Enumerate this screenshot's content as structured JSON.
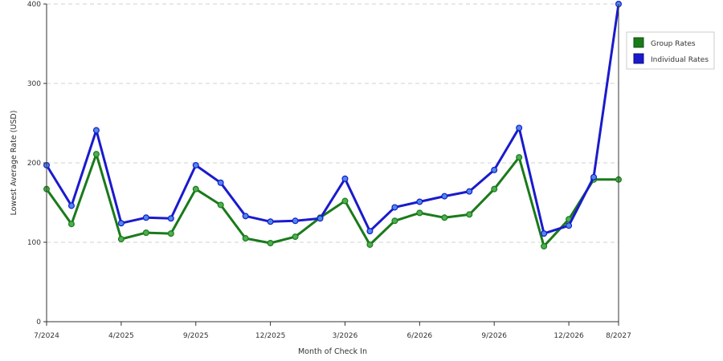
{
  "chart_data": {
    "type": "line",
    "xlabel": "Month of Check In",
    "ylabel": "Lowest Average Rate (USD)",
    "ylim": [
      0,
      400
    ],
    "yticks": [
      0,
      100,
      200,
      300,
      400
    ],
    "grid": "horizontal-dashed",
    "legend_position": "right",
    "x_tick_labels": [
      {
        "index": 0,
        "label": "7/2024"
      },
      {
        "index": 3,
        "label": "4/2025"
      },
      {
        "index": 6,
        "label": "9/2025"
      },
      {
        "index": 9,
        "label": "12/2025"
      },
      {
        "index": 12,
        "label": "3/2026"
      },
      {
        "index": 15,
        "label": "6/2026"
      },
      {
        "index": 18,
        "label": "9/2026"
      },
      {
        "index": 21,
        "label": "12/2026"
      },
      {
        "index": 23,
        "label": "8/2027"
      }
    ],
    "num_points": 24,
    "series": [
      {
        "name": "Group Rates",
        "color": "#1a7a1a",
        "marker_color": "#4caf50",
        "values": [
          167,
          123,
          211,
          104,
          112,
          111,
          167,
          147,
          105,
          99,
          107,
          131,
          152,
          97,
          127,
          137,
          131,
          135,
          167,
          207,
          95,
          129,
          179,
          179
        ]
      },
      {
        "name": "Individual Rates",
        "color": "#1a1acd",
        "marker_color": "#4b8be8",
        "values": [
          197,
          146,
          241,
          124,
          131,
          130,
          197,
          175,
          133,
          126,
          127,
          130,
          180,
          114,
          144,
          151,
          158,
          164,
          191,
          244,
          111,
          121,
          182,
          400
        ]
      }
    ]
  }
}
